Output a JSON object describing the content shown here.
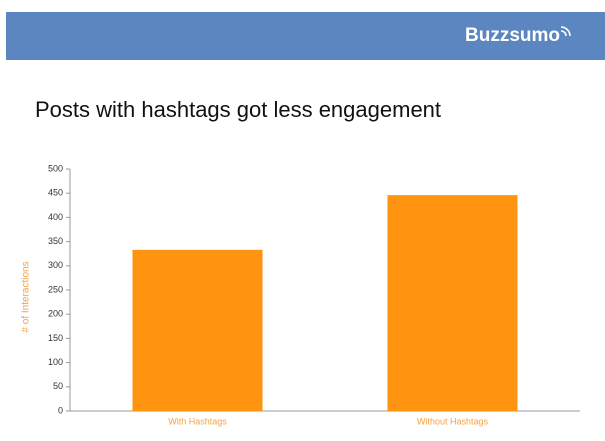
{
  "header": {
    "logo": "Buzzsumo"
  },
  "chart_data": {
    "type": "bar",
    "title": "Posts with hashtags got less engagement",
    "y_label": "# of Interactions",
    "categories": [
      "With Hashtags",
      "Without Hashtags"
    ],
    "values": [
      333,
      446
    ],
    "color": "#ff9410",
    "ylim": [
      0,
      500
    ],
    "yticks": [
      0,
      50,
      100,
      150,
      200,
      250,
      300,
      350,
      400,
      450,
      500
    ],
    "grid": false
  }
}
